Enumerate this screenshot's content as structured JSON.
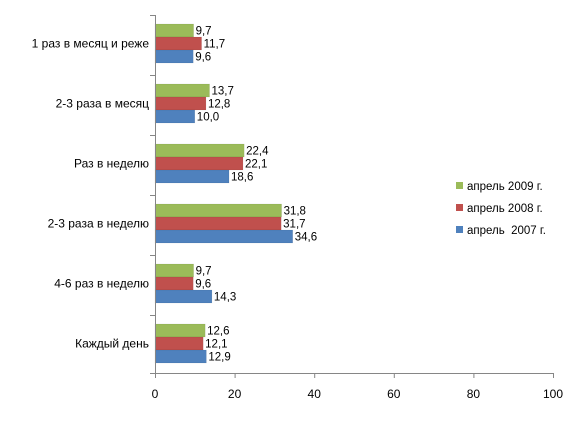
{
  "chart_data": {
    "type": "bar",
    "orientation": "horizontal",
    "categories": [
      "1 раз в месяц и реже",
      "2-3 раза в месяц",
      "Раз в неделю",
      "2-3 раза в неделю",
      "4-6 раз в неделю",
      "Каждый день"
    ],
    "series": [
      {
        "name": "апрель 2009 г.",
        "color": "#9bbb59",
        "values": [
          9.7,
          13.7,
          22.4,
          31.8,
          9.7,
          12.6
        ],
        "labels": [
          "9,7",
          "13,7",
          "22,4",
          "31,8",
          "9,7",
          "12,6"
        ]
      },
      {
        "name": "апрель 2008 г.",
        "color": "#c0504d",
        "values": [
          11.7,
          12.8,
          22.1,
          31.7,
          9.6,
          12.1
        ],
        "labels": [
          "11,7",
          "12,8",
          "22,1",
          "31,7",
          "9,6",
          "12,1"
        ]
      },
      {
        "name": "апрель  2007 г.",
        "color": "#4f81bd",
        "values": [
          9.6,
          10.0,
          18.6,
          34.6,
          14.3,
          12.9
        ],
        "labels": [
          "9,6",
          "10,0",
          "18,6",
          "34,6",
          "14,3",
          "12,9"
        ]
      }
    ],
    "x_ticks": [
      "0",
      "20",
      "40",
      "60",
      "80",
      "100"
    ],
    "xlim": [
      0,
      100
    ],
    "title": "",
    "xlabel": "",
    "ylabel": "",
    "grid": false,
    "legend_position": "right"
  }
}
